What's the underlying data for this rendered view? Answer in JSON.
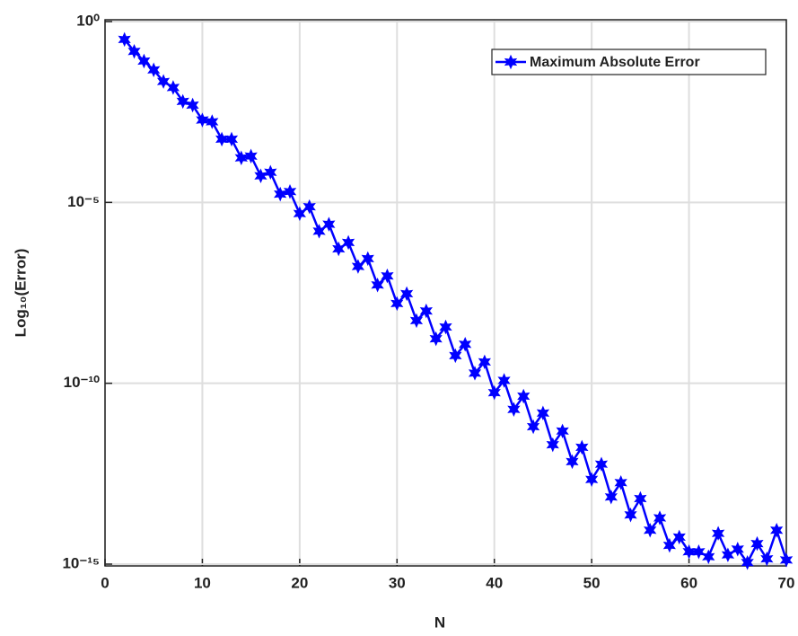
{
  "chart_data": {
    "type": "line",
    "xlabel": "N",
    "ylabel": "Log₁₀(Error)",
    "x": [
      2,
      3,
      4,
      5,
      6,
      7,
      8,
      9,
      10,
      11,
      12,
      13,
      14,
      15,
      16,
      17,
      18,
      19,
      20,
      21,
      22,
      23,
      24,
      25,
      26,
      27,
      28,
      29,
      30,
      31,
      32,
      33,
      34,
      35,
      36,
      37,
      38,
      39,
      40,
      41,
      42,
      43,
      44,
      45,
      46,
      47,
      48,
      49,
      50,
      51,
      52,
      53,
      54,
      55,
      56,
      57,
      58,
      59,
      60,
      61,
      62,
      63,
      64,
      65,
      66,
      67,
      68,
      69,
      70
    ],
    "series": [
      {
        "name": "Maximum Absolute Error",
        "color": "#0000ff",
        "values": [
          0.32,
          0.15,
          0.081,
          0.046,
          0.022,
          0.015,
          0.0062,
          0.0049,
          0.0019,
          0.0017,
          0.00056,
          0.00056,
          0.00017,
          0.00019,
          5.4e-05,
          6.8e-05,
          1.7e-05,
          2e-05,
          4.9e-06,
          7.6e-06,
          1.6e-06,
          2.5e-06,
          5.2e-07,
          7.8e-07,
          1.7e-07,
          2.8e-07,
          5.2e-08,
          9.3e-08,
          1.6e-08,
          3e-08,
          5.4e-09,
          1e-08,
          1.7e-09,
          3.6e-09,
          5.8e-10,
          1.2e-09,
          1.9e-10,
          3.9e-10,
          5.5e-11,
          1.2e-10,
          1.9e-11,
          4.4e-11,
          6.3e-12,
          1.5e-11,
          2e-12,
          4.8e-12,
          6.8e-13,
          1.7e-12,
          2.2e-13,
          5.8e-13,
          7.2e-14,
          1.8e-13,
          2.3e-14,
          6.5e-14,
          8.7e-15,
          1.9e-14,
          3.3e-15,
          5.6e-15,
          2.2e-15,
          2.2e-15,
          1.6e-15,
          7.1e-15,
          1.8e-15,
          2.6e-15,
          1.1e-15,
          3.7e-15,
          1.4e-15,
          8.7e-15,
          1.3e-15
        ]
      }
    ],
    "xlim": [
      0,
      70
    ],
    "xticks": [
      0,
      10,
      20,
      30,
      40,
      50,
      60,
      70
    ],
    "ylim": [
      1e-15,
      1
    ],
    "log_scale": true,
    "yticks": [
      {
        "value": 1e-15,
        "label": "10⁻¹⁵"
      },
      {
        "value": 1e-10,
        "label": "10⁻¹⁰"
      },
      {
        "value": 1e-05,
        "label": "10⁻⁵"
      },
      {
        "value": 1,
        "label": "10⁰"
      }
    ],
    "grid": true,
    "legend": "upper right"
  }
}
